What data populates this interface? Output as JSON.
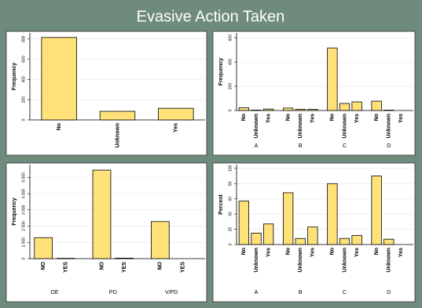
{
  "title": "Evasive Action Taken",
  "chart_data": [
    {
      "type": "bar",
      "ylabel": "Frequency",
      "categories": [
        "No",
        "Unknown",
        "Yes"
      ],
      "values": [
        815,
        85,
        115
      ],
      "ylim": [
        0,
        860
      ],
      "yticks": [
        0,
        200,
        400,
        600,
        800
      ],
      "color": "#ffe17a",
      "grid": true
    },
    {
      "type": "bar",
      "ylabel": "Frequency",
      "groups": [
        "A",
        "B",
        "C",
        "D"
      ],
      "categories": [
        "No",
        "Unknown",
        "Yes"
      ],
      "values": [
        [
          22,
          3,
          12
        ],
        [
          20,
          10,
          10
        ],
        [
          516,
          58,
          71
        ],
        [
          77,
          3,
          0
        ]
      ],
      "ylim": [
        0,
        640
      ],
      "yticks": [
        0,
        200,
        400,
        600
      ],
      "color": "#ffe17a",
      "grid": true
    },
    {
      "type": "bar",
      "ylabel": "Frequency",
      "groups": [
        "OE",
        "PD",
        "V/PD"
      ],
      "categories": [
        "NO",
        "YES"
      ],
      "values": [
        [
          1290,
          20
        ],
        [
          5450,
          30
        ],
        [
          2280,
          0
        ]
      ],
      "ylim": [
        0,
        5790
      ],
      "yticks": [
        0,
        {
          "value": 1000,
          "label": "1 000"
        },
        {
          "value": 2000,
          "label": "2 000"
        },
        {
          "value": 3000,
          "label": "3 000"
        },
        {
          "value": 4000,
          "label": "4 000"
        },
        {
          "value": 5000,
          "label": "5 000"
        }
      ],
      "color": "#ffe17a",
      "grid": true
    },
    {
      "type": "bar",
      "ylabel": "Percent",
      "groups": [
        "A",
        "B",
        "C",
        "D"
      ],
      "categories": [
        "No",
        "Unknown",
        "Yes"
      ],
      "values": [
        [
          57,
          15,
          27
        ],
        [
          68,
          8,
          23
        ],
        [
          80,
          8,
          12
        ],
        [
          90,
          7,
          0
        ]
      ],
      "ylim": [
        0,
        105
      ],
      "yticks": [
        0,
        20,
        40,
        60,
        80,
        100
      ],
      "color": "#ffe17a",
      "grid": true
    }
  ]
}
